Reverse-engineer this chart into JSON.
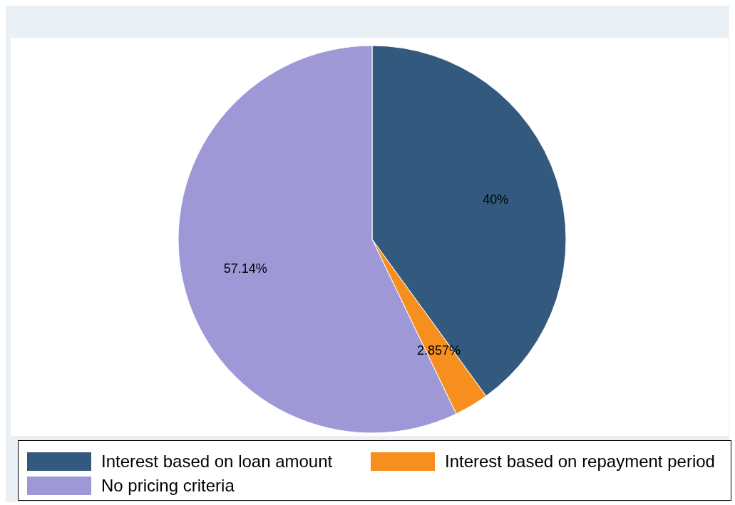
{
  "chart_data": {
    "type": "pie",
    "categories": [
      "Interest based on loan amount",
      "Interest based on repayment period",
      "No pricing criteria"
    ],
    "values": [
      40,
      2.857,
      57.14
    ],
    "colors": [
      "#335a7e",
      "#f78f1f",
      "#9f98d6"
    ],
    "value_labels": [
      "40%",
      "2.857%",
      "57.14%"
    ],
    "legend": "bottom"
  }
}
